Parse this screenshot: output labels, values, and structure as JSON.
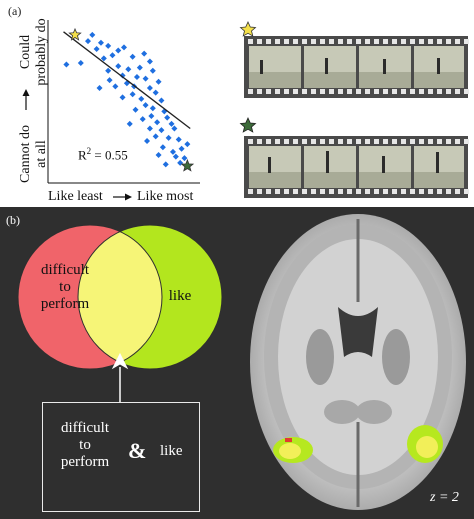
{
  "panel_a": {
    "label": "(a)",
    "y_axis": {
      "top": "Could\nprobably do",
      "bottom": "Cannot do\nat all"
    },
    "x_axis": {
      "left": "Like least",
      "right": "Like most"
    },
    "r2_text": "R",
    "r2_sup": "2",
    "r2_value": " = 0.55",
    "colors": {
      "points": "#1f6fe0",
      "star_top": "#f4e04a",
      "star_bottom": "#3d6b3a",
      "line": "#222222"
    }
  },
  "panel_b": {
    "label": "(b)",
    "venn": {
      "left_text": "difficult\nto\nperform",
      "right_text": "like",
      "colors": {
        "left": "#f0646a",
        "right": "#b3e61e",
        "overlap": "#f6f577"
      }
    },
    "box": {
      "left_text": "difficult\nto\nperform",
      "amp": "&",
      "right_text": "like"
    },
    "slice_label": "z = 2"
  },
  "chart_data": {
    "type": "scatter",
    "title": "",
    "xlabel": "Like least → Like most",
    "ylabel": "Cannot do at all → Could probably do",
    "annotation": "R² = 0.55",
    "xlim": [
      0,
      10
    ],
    "ylim": [
      0,
      10
    ],
    "series": [
      {
        "points": [
          [
            2.8,
            9.3
          ],
          [
            2.5,
            8.9
          ],
          [
            3.4,
            8.8
          ],
          [
            3.9,
            8.6
          ],
          [
            3.1,
            8.4
          ],
          [
            4.6,
            8.3
          ],
          [
            5.0,
            8.5
          ],
          [
            4.2,
            8.0
          ],
          [
            3.6,
            7.8
          ],
          [
            5.6,
            7.9
          ],
          [
            6.4,
            8.1
          ],
          [
            6.8,
            7.6
          ],
          [
            4.6,
            7.3
          ],
          [
            5.3,
            7.1
          ],
          [
            6.1,
            7.2
          ],
          [
            7.0,
            7.0
          ],
          [
            3.9,
            7.0
          ],
          [
            4.9,
            6.7
          ],
          [
            5.9,
            6.6
          ],
          [
            6.5,
            6.5
          ],
          [
            7.4,
            6.3
          ],
          [
            5.2,
            6.2
          ],
          [
            6.8,
            5.9
          ],
          [
            4.4,
            6.0
          ],
          [
            7.2,
            5.6
          ],
          [
            5.6,
            5.5
          ],
          [
            6.2,
            5.2
          ],
          [
            7.6,
            5.1
          ],
          [
            4.9,
            5.3
          ],
          [
            6.5,
            4.8
          ],
          [
            7.0,
            4.6
          ],
          [
            5.8,
            4.5
          ],
          [
            7.8,
            4.4
          ],
          [
            6.9,
            4.1
          ],
          [
            8.0,
            4.0
          ],
          [
            6.3,
            3.9
          ],
          [
            7.3,
            3.7
          ],
          [
            8.3,
            3.6
          ],
          [
            5.4,
            3.6
          ],
          [
            7.6,
            3.2
          ],
          [
            6.8,
            3.3
          ],
          [
            8.5,
            3.3
          ],
          [
            7.2,
            2.8
          ],
          [
            8.1,
            2.7
          ],
          [
            8.8,
            2.6
          ],
          [
            6.6,
            2.5
          ],
          [
            7.7,
            2.1
          ],
          [
            9.0,
            2.0
          ],
          [
            8.4,
            1.8
          ],
          [
            7.4,
            1.6
          ],
          [
            9.2,
            1.4
          ],
          [
            8.9,
            1.1
          ],
          [
            7.9,
            1.0
          ],
          [
            9.4,
            2.3
          ],
          [
            3.3,
            5.9
          ],
          [
            2.0,
            7.5
          ],
          [
            1.0,
            7.4
          ],
          [
            8.6,
            1.5
          ],
          [
            4.0,
            6.4
          ],
          [
            5.7,
            6.0
          ]
        ]
      }
    ],
    "fit_line": [
      [
        0.8,
        9.5
      ],
      [
        9.6,
        3.3
      ]
    ],
    "stars": [
      {
        "x": 1.6,
        "y": 9.3,
        "color": "yellow"
      },
      {
        "x": 9.4,
        "y": 0.9,
        "color": "green"
      }
    ]
  }
}
